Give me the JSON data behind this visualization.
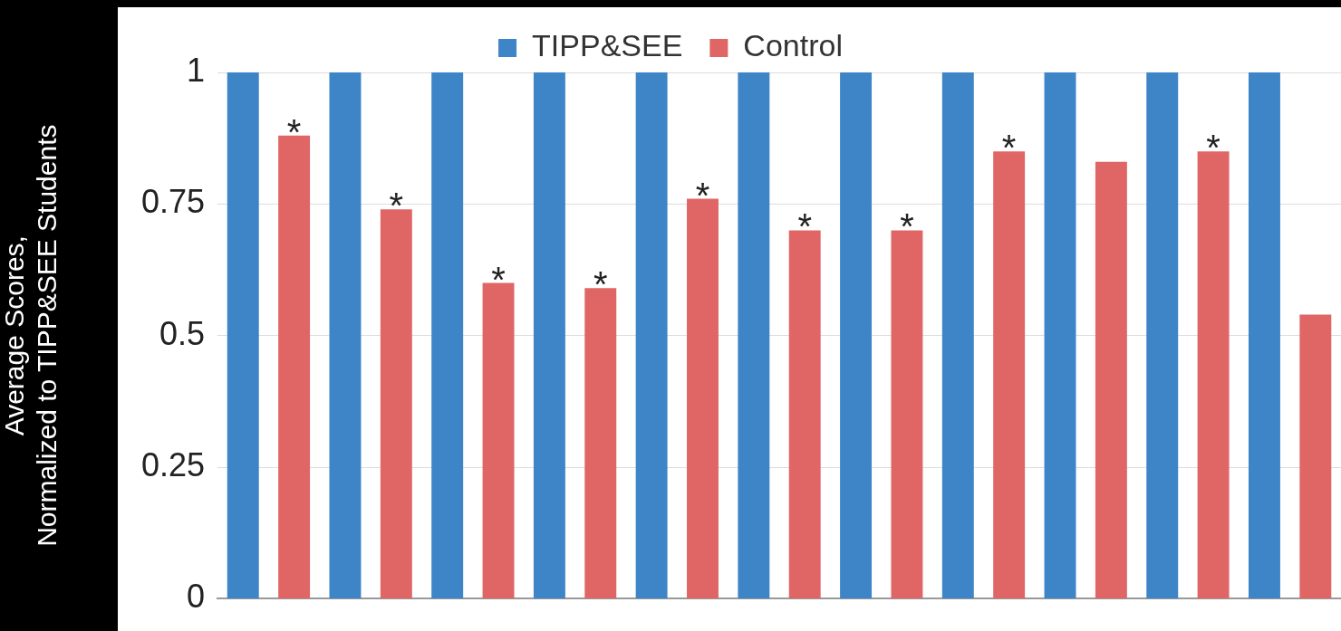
{
  "chart_data": {
    "type": "bar",
    "ylabel": "Average Scores,\nNormalized to TIPP&SEE Students",
    "categories": [
      null,
      null,
      null,
      null,
      null,
      null,
      null,
      null,
      null,
      null,
      null
    ],
    "series": [
      {
        "name": "TIPP&SEE",
        "color": "#3d85c6",
        "values": [
          1,
          1,
          1,
          1,
          1,
          1,
          1,
          1,
          1,
          1,
          1
        ]
      },
      {
        "name": "Control",
        "color": "#e06666",
        "values": [
          0.88,
          0.74,
          0.6,
          0.59,
          0.76,
          0.7,
          0.7,
          0.85,
          0.83,
          0.85,
          0.54
        ],
        "value_labels": [
          "*",
          "*",
          "*",
          "*",
          "*",
          "*",
          "*",
          "*",
          null,
          "*",
          null
        ]
      }
    ],
    "ylim": [
      0,
      1
    ],
    "yticks": [
      0,
      0.25,
      0.5,
      0.75,
      1
    ],
    "grid": "y",
    "legend": "top",
    "tick_labels": "y"
  }
}
